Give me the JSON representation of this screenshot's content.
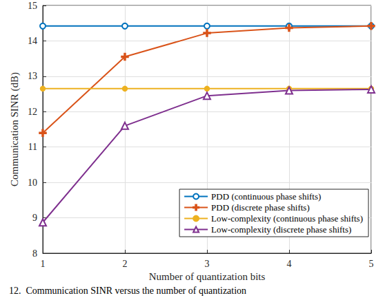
{
  "chart_data": {
    "type": "line",
    "caption": "12.  Communication SINR versus the number of quantization",
    "xlabel": "Number of quantization bits",
    "ylabel": "Communication SINR (dB)",
    "x": [
      1,
      2,
      3,
      4,
      5
    ],
    "series": [
      {
        "name": "PDD (continuous phase shifts)",
        "color": "#0072bd",
        "marker": "open_circle",
        "values": [
          14.42,
          14.42,
          14.42,
          14.42,
          14.42
        ]
      },
      {
        "name": "PDD (discrete phase shifts)",
        "color": "#d95319",
        "marker": "plus",
        "values": [
          11.4,
          13.55,
          14.22,
          14.37,
          14.42
        ]
      },
      {
        "name": "Low-complexity (continuous phase shifts)",
        "color": "#edb120",
        "marker": "dot",
        "values": [
          12.65,
          12.65,
          12.65,
          12.65,
          12.65
        ]
      },
      {
        "name": "Low-complexity (discrete phase shifts)",
        "color": "#7e2f8e",
        "marker": "open_triangle",
        "values": [
          8.87,
          11.6,
          12.45,
          12.6,
          12.63
        ]
      }
    ],
    "xlim": [
      1,
      5
    ],
    "xticks": [
      1,
      2,
      3,
      4,
      5
    ],
    "ylim": [
      8,
      15
    ],
    "yticks": [
      8,
      9,
      10,
      11,
      12,
      13,
      14,
      15
    ],
    "grid": true,
    "legend": "lower right"
  }
}
